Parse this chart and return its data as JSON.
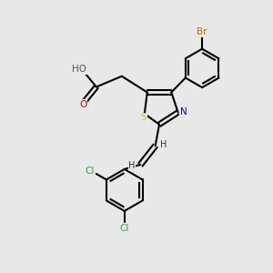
{
  "bg_color": "#e8e8e8",
  "bond_color": "#000000",
  "atom_colors": {
    "S": "#cccc00",
    "N": "#0000cc",
    "O_carbonyl": "#cc0000",
    "O_hydroxyl": "#555555",
    "Br": "#cc6600",
    "Cl": "#33aa33",
    "H": "#333333",
    "C": "#000000"
  }
}
